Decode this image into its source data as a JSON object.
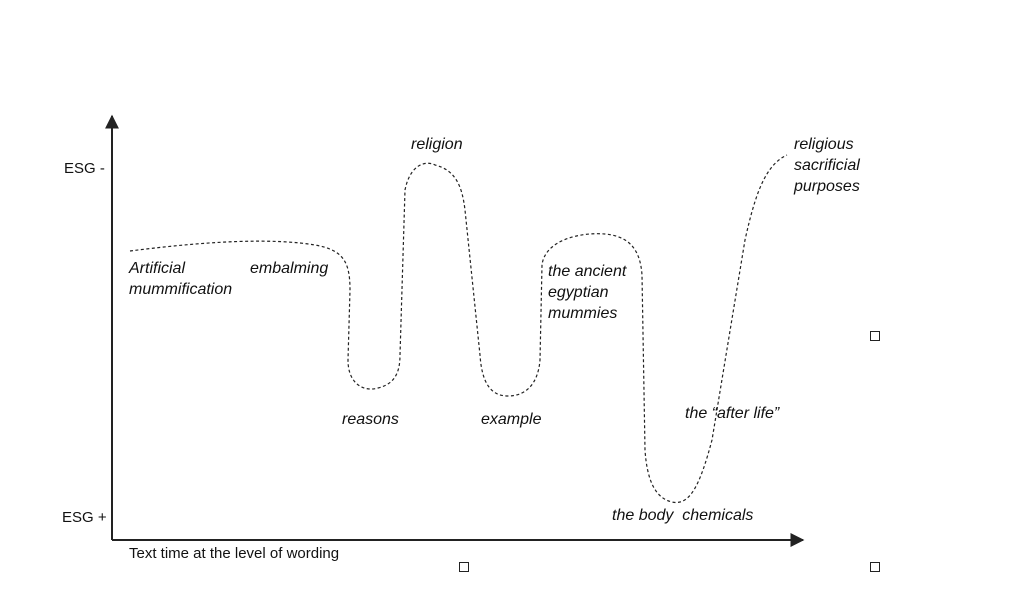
{
  "axes": {
    "y_top_label": "ESG -",
    "y_bottom_label": "ESG +",
    "x_label": "Text time at the level of wording"
  },
  "terms": {
    "artificial_mummification": "Artificial\nmummification",
    "embalming": "embalming",
    "religion": "religion",
    "reasons": "reasons",
    "example": "example",
    "ancient_egyptian_mummies": "the ancient\negyptian\nmummies",
    "after_life": "the “after life”",
    "body_chemicals": "the body  chemicals",
    "religious_sacrificial_purposes": "religious\nsacrificial\npurposes"
  },
  "colors": {
    "line": "#222222",
    "text": "#111111"
  }
}
